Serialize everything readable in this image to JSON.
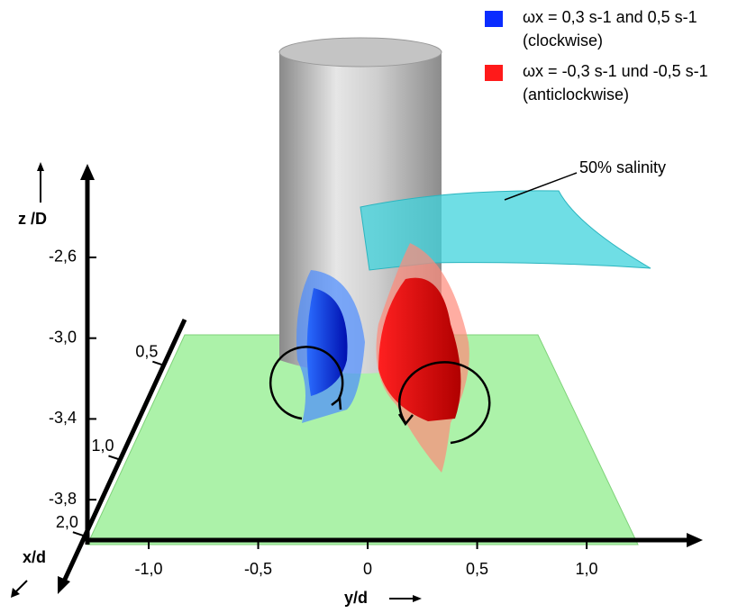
{
  "chart_data": {
    "type": "surface3d",
    "xlabel": "x/d",
    "ylabel": "y/d",
    "zlabel": "z /D",
    "xlim": [
      0.36,
      4.18
    ],
    "xticks": [
      {
        "value": 0.5,
        "label": "0,5"
      },
      {
        "value": 1.0,
        "label": "1,0"
      },
      {
        "value": 2.0,
        "label": "2,0"
      }
    ],
    "ylim": [
      -1.28,
      1.51
    ],
    "yticks": [
      {
        "value": -1.0,
        "label": "-1,0"
      },
      {
        "value": -0.5,
        "label": "-0,5"
      },
      0,
      {
        "value": 0.5,
        "label": "0,5"
      },
      {
        "value": 1.0,
        "label": "1,0"
      }
    ],
    "zlim": [
      -4.0,
      -2.15
    ],
    "zticks": [
      {
        "value": -2.6,
        "label": "-2,6"
      },
      {
        "value": -3.0,
        "label": "-3,0"
      },
      {
        "value": -3.4,
        "label": "-3,4"
      },
      {
        "value": -3.8,
        "label": "-3,8"
      }
    ],
    "series": [
      {
        "name": "ωx = 0,3 s-1 and 0,5 s-1",
        "note": "(clockwise)",
        "color": "#0a2cff"
      },
      {
        "name": "ωx = -0,3 s-1 und -0,5 s-1",
        "note": "(anticlockwise)",
        "color": "#ff1a1a"
      }
    ],
    "annotation": "50% salinity"
  }
}
